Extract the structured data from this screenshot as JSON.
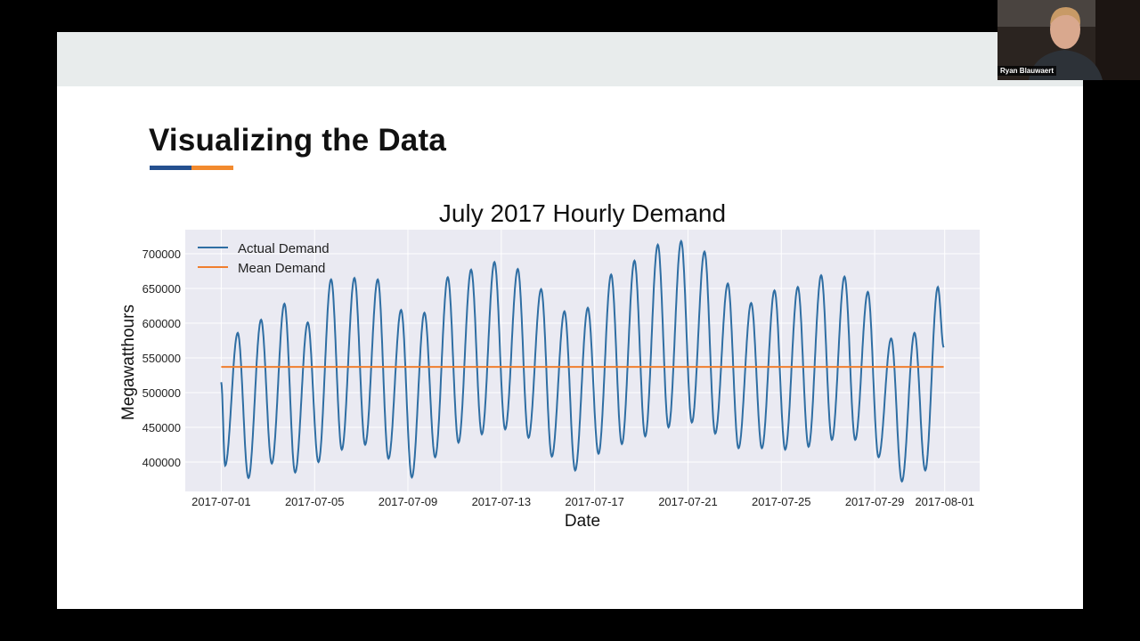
{
  "slide": {
    "title": "Visualizing the Data",
    "accent_colors": [
      "#24508f",
      "#f28a2e"
    ]
  },
  "webcam": {
    "participant_name": "Ryan Blauwaert"
  },
  "chart_data": {
    "type": "line",
    "title": "July 2017 Hourly Demand",
    "xlabel": "Date",
    "ylabel": "Megawatthours",
    "xlim": [
      "2017-06-29T11:00",
      "2017-08-02T12:00"
    ],
    "ylim": [
      357700,
      734600
    ],
    "x_ticks": [
      "2017-07-01",
      "2017-07-05",
      "2017-07-09",
      "2017-07-13",
      "2017-07-17",
      "2017-07-21",
      "2017-07-25",
      "2017-07-29",
      "2017-08-01"
    ],
    "y_ticks": [
      400000,
      450000,
      500000,
      550000,
      600000,
      650000,
      700000
    ],
    "grid": true,
    "background": "#eaeaf2",
    "legend_position": "top-left",
    "series": [
      {
        "name": "Actual Demand",
        "color": "#2f6ea3",
        "resolution": "hourly",
        "start": "2017-07-01T00:00",
        "end": "2017-07-31T23:00",
        "start_value": 515000,
        "end_value": 565000,
        "daily_trough_hour": 4,
        "daily_peak_hour": 17,
        "daily_troughs": [
          395000,
          377000,
          398000,
          385000,
          400000,
          418000,
          425000,
          405000,
          378000,
          407000,
          428000,
          440000,
          447000,
          435000,
          408000,
          388000,
          412000,
          426000,
          437000,
          450000,
          457000,
          441000,
          420000,
          420000,
          418000,
          422000,
          432000,
          432000,
          407000,
          372000,
          388000
        ],
        "daily_peaks": [
          586000,
          605000,
          628000,
          601000,
          663000,
          665000,
          663000,
          619000,
          615000,
          666000,
          677000,
          688000,
          678000,
          649000,
          617000,
          622000,
          670000,
          690000,
          713000,
          718000,
          703000,
          657000,
          629000,
          647000,
          652000,
          669000,
          667000,
          645000,
          578000,
          586000,
          652000
        ]
      },
      {
        "name": "Mean Demand",
        "color": "#f07f2e",
        "value": 537000,
        "start": "2017-07-01T00:00",
        "end": "2017-07-31T23:00"
      }
    ]
  }
}
